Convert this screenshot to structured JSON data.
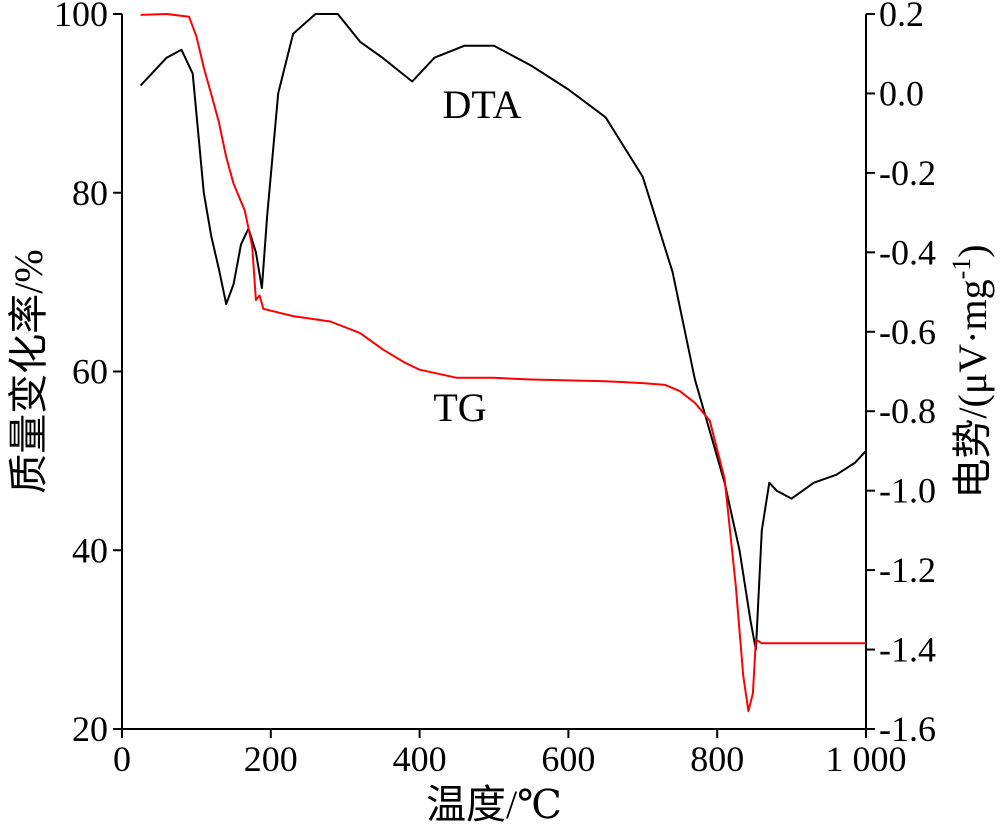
{
  "chart_data": {
    "type": "line",
    "xlabel": "温度/℃",
    "ylabel_left": "质量变化率/%",
    "ylabel_right": "电势/(μV·mg",
    "ylabel_right_superscript": "-1",
    "ylabel_right_close": ")",
    "xlim": [
      0,
      1000
    ],
    "ylim_left": [
      20,
      100
    ],
    "ylim_right": [
      -1.6,
      0.2
    ],
    "x_ticks": [
      0,
      200,
      400,
      600,
      800,
      1000
    ],
    "x_tick_labels": [
      "0",
      "200",
      "400",
      "600",
      "800",
      "1 000"
    ],
    "y_left_ticks": [
      20,
      40,
      60,
      80,
      100
    ],
    "y_left_tick_labels": [
      "20",
      "40",
      "60",
      "80",
      "100"
    ],
    "y_right_ticks": [
      -1.6,
      -1.4,
      -1.2,
      -1.0,
      -0.8,
      -0.6,
      -0.4,
      -0.2,
      0.0,
      0.2
    ],
    "y_right_tick_labels": [
      "-1.6",
      "-1.4",
      "-1.2",
      "-1.0",
      "-0.8",
      "-0.6",
      "-0.4",
      "-0.2",
      "0.0",
      "0.2"
    ],
    "grid": false,
    "series": [
      {
        "name": "DTA",
        "axis": "right",
        "color": "#000000",
        "x": [
          25,
          40,
          60,
          80,
          95,
          110,
          120,
          130,
          140,
          150,
          160,
          170,
          180,
          188,
          195,
          210,
          230,
          260,
          290,
          320,
          350,
          370,
          390,
          420,
          460,
          500,
          550,
          600,
          650,
          700,
          740,
          770,
          790,
          810,
          830,
          845,
          852,
          860,
          870,
          880,
          900,
          930,
          960,
          985,
          1000
        ],
        "y": [
          0.02,
          0.05,
          0.09,
          0.11,
          0.05,
          -0.25,
          -0.36,
          -0.44,
          -0.53,
          -0.48,
          -0.38,
          -0.34,
          -0.4,
          -0.49,
          -0.31,
          0.0,
          0.15,
          0.2,
          0.2,
          0.13,
          0.09,
          0.06,
          0.03,
          0.09,
          0.12,
          0.12,
          0.07,
          0.01,
          -0.06,
          -0.21,
          -0.45,
          -0.72,
          -0.85,
          -0.98,
          -1.15,
          -1.33,
          -1.4,
          -1.1,
          -0.98,
          -1.0,
          -1.02,
          -0.98,
          -0.96,
          -0.93,
          -0.9
        ]
      },
      {
        "name": "TG",
        "axis": "left",
        "color": "#ff0000",
        "x": [
          25,
          60,
          90,
          100,
          110,
          120,
          130,
          140,
          150,
          165,
          175,
          180,
          185,
          190,
          200,
          230,
          280,
          320,
          350,
          380,
          400,
          450,
          500,
          550,
          600,
          650,
          700,
          730,
          750,
          770,
          790,
          810,
          825,
          835,
          842,
          848,
          852,
          860,
          900,
          950,
          1000
        ],
        "y": [
          99.9,
          100,
          99.7,
          97.5,
          94,
          91,
          88,
          84,
          81,
          78,
          74,
          68,
          68.5,
          67,
          66.8,
          66.2,
          65.6,
          64.3,
          62.5,
          61,
          60.2,
          59.3,
          59.3,
          59.1,
          59.0,
          58.9,
          58.7,
          58.5,
          57.8,
          56.5,
          54.5,
          48,
          36,
          26,
          22,
          24,
          30,
          29.6,
          29.6,
          29.6,
          29.6
        ]
      }
    ]
  }
}
